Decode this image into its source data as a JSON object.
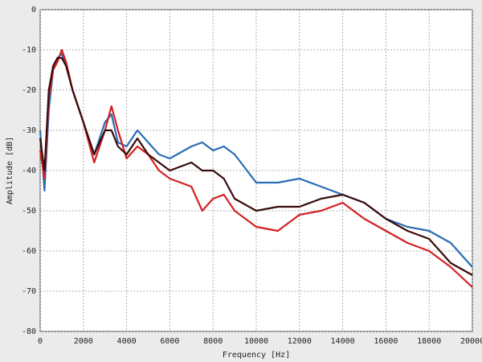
{
  "chart_data": {
    "type": "line",
    "x_label": "Frequency [Hz]",
    "y_label": "Amplitude [dB]",
    "x": [
      0,
      200,
      400,
      600,
      800,
      1000,
      1200,
      1500,
      2000,
      2500,
      3000,
      3300,
      3600,
      4000,
      4500,
      5000,
      5500,
      6000,
      7000,
      7500,
      8000,
      8500,
      9000,
      10000,
      11000,
      12000,
      13000,
      14000,
      15000,
      16000,
      17000,
      18000,
      19000,
      20000
    ],
    "series": [
      {
        "color": "#2a6db5",
        "values": [
          -30,
          -45,
          -25,
          -15,
          -12,
          -11,
          -14,
          -20,
          -28,
          -36,
          -28,
          -26,
          -33,
          -34,
          -30,
          -33,
          -36,
          -37,
          -34,
          -33,
          -35,
          -34,
          -36,
          -43,
          -43,
          -42,
          -44,
          -46,
          -48,
          -52,
          -54,
          -55,
          -58,
          -64
        ]
      },
      {
        "color": "#d42020",
        "values": [
          -35,
          -42,
          -22,
          -15,
          -13,
          -10,
          -13,
          -20,
          -28,
          -38,
          -30,
          -24,
          -30,
          -37,
          -34,
          -36,
          -40,
          -42,
          -44,
          -50,
          -47,
          -46,
          -50,
          -54,
          -55,
          -51,
          -50,
          -48,
          -52,
          -55,
          -58,
          -60,
          -64,
          -69
        ]
      },
      {
        "color": "#3a0a0a",
        "values": [
          -32,
          -40,
          -20,
          -14,
          -12,
          -12,
          -14,
          -20,
          -28,
          -36,
          -30,
          -30,
          -34,
          -36,
          -32,
          -36,
          -38,
          -40,
          -38,
          -40,
          -40,
          -42,
          -47,
          -50,
          -49,
          -49,
          -47,
          -46,
          -48,
          -52,
          -55,
          -57,
          -63,
          -66
        ]
      }
    ],
    "xlim": [
      0,
      20000
    ],
    "ylim": [
      -80,
      0
    ],
    "xticks": [
      0,
      2000,
      4000,
      6000,
      8000,
      10000,
      12000,
      14000,
      16000,
      18000,
      20000
    ],
    "yticks": [
      0,
      -10,
      -20,
      -30,
      -40,
      -50,
      -60,
      -70,
      -80
    ],
    "grid": true
  }
}
